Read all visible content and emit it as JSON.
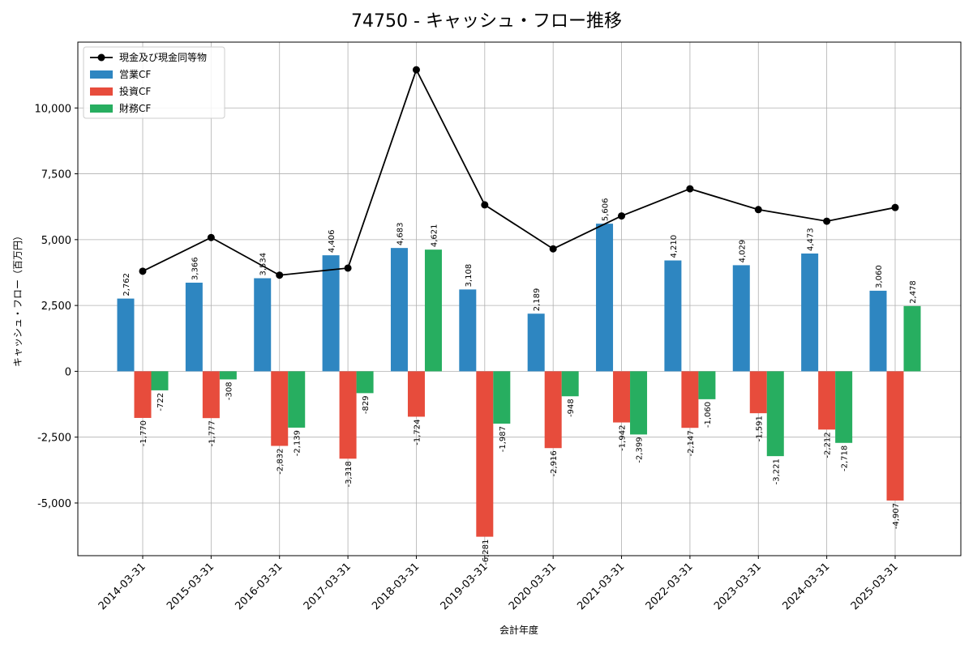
{
  "chart_data": {
    "type": "bar",
    "title": "74750 - キャッシュ・フロー推移",
    "xlabel": "会計年度",
    "ylabel": "キャッシュ・フロー（百万円）",
    "ylim": [
      -7000,
      12500
    ],
    "yticks": [
      -5000,
      -2500,
      0,
      2500,
      5000,
      7500,
      10000
    ],
    "ytick_labels": [
      "-5,000",
      "-2,500",
      "0",
      "2,500",
      "5,000",
      "7,500",
      "10,000"
    ],
    "grid": true,
    "legend_position": "top-left",
    "categories": [
      "2014-03-31",
      "2015-03-31",
      "2016-03-31",
      "2017-03-31",
      "2018-03-31",
      "2019-03-31",
      "2020-03-31",
      "2021-03-31",
      "2022-03-31",
      "2023-03-31",
      "2024-03-31",
      "2025-03-31"
    ],
    "series": [
      {
        "name": "営業CF",
        "type": "bar",
        "color": "#2e86c1",
        "values": [
          2762,
          3366,
          3534,
          4406,
          4683,
          3108,
          2189,
          5606,
          4210,
          4029,
          4473,
          3060
        ],
        "labels": [
          "2,762",
          "3,366",
          "3,534",
          "4,406",
          "4,683",
          "3,108",
          "2,189",
          "5,606",
          "4,210",
          "4,029",
          "4,473",
          "3,060"
        ]
      },
      {
        "name": "投資CF",
        "type": "bar",
        "color": "#e74c3c",
        "values": [
          -1770,
          -1777,
          -2832,
          -3318,
          -1724,
          -6281,
          -2916,
          -1942,
          -2147,
          -1591,
          -2212,
          -4907
        ],
        "labels": [
          "-1,770",
          "-1,777",
          "-2,832",
          "-3,318",
          "-1,724",
          "-6,281",
          "-2,916",
          "-1,942",
          "-2,147",
          "-1,591",
          "-2,212",
          "-4,907"
        ]
      },
      {
        "name": "財務CF",
        "type": "bar",
        "color": "#27ae60",
        "values": [
          -722,
          -308,
          -2139,
          -829,
          4621,
          -1987,
          -948,
          -2399,
          -1060,
          -3221,
          -2718,
          2478
        ],
        "labels": [
          "-722",
          "-308",
          "-2,139",
          "-829",
          "4,621",
          "-1,987",
          "-948",
          "-2,399",
          "-1,060",
          "-3,221",
          "-2,718",
          "2,478"
        ]
      },
      {
        "name": "現金及び現金同等物",
        "type": "line",
        "color": "#000000",
        "values": [
          3800,
          5080,
          3650,
          3920,
          11450,
          6320,
          4650,
          5900,
          6930,
          6140,
          5700,
          6220
        ]
      }
    ]
  }
}
